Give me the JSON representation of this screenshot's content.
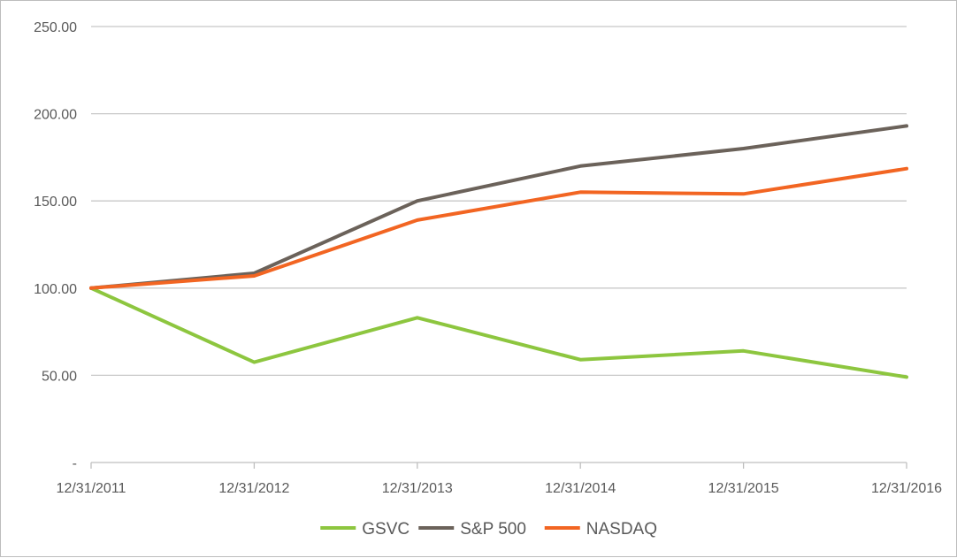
{
  "chart_data": {
    "type": "line",
    "x": [
      "12/31/2011",
      "12/31/2012",
      "12/31/2013",
      "12/31/2014",
      "12/31/2015",
      "12/31/2016"
    ],
    "y_tick_labels": [
      "-",
      "50.00",
      "100.00",
      "150.00",
      "200.00",
      "250.00"
    ],
    "y_ticks": [
      0,
      50,
      100,
      150,
      200,
      250
    ],
    "ylim": [
      0,
      250
    ],
    "grid": true,
    "legend_position": "bottom",
    "series": [
      {
        "name": "GSVC",
        "color": "#8dc63f",
        "values": [
          100,
          57.5,
          83,
          59,
          64,
          49
        ]
      },
      {
        "name": "S&P 500",
        "color": "#6b625a",
        "values": [
          100,
          108.5,
          150,
          170,
          180,
          193
        ]
      },
      {
        "name": "NASDAQ",
        "color": "#f26522",
        "values": [
          100,
          107,
          139,
          155,
          154,
          168.5
        ]
      }
    ]
  }
}
